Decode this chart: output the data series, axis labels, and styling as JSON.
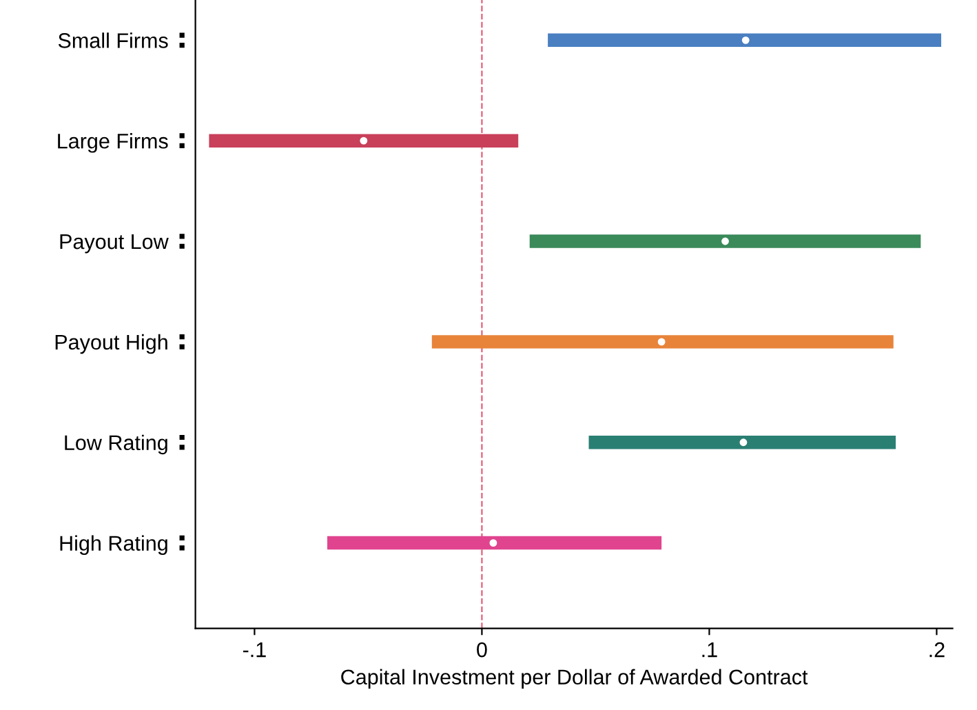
{
  "chart_data": {
    "type": "scatter",
    "orientation": "horizontal",
    "xlabel": "Capital Investment per Dollar of Awarded Contract",
    "categories": [
      "Small Firms",
      "Large Firms",
      "Payout Low",
      "Payout High",
      "Low Rating",
      "High Rating"
    ],
    "values": [
      0.116,
      -0.052,
      0.107,
      0.079,
      0.115,
      0.005
    ],
    "errors": [
      [
        0.029,
        0.202
      ],
      [
        -0.12,
        0.016
      ],
      [
        0.021,
        0.193
      ],
      [
        -0.022,
        0.181
      ],
      [
        0.047,
        0.182
      ],
      [
        -0.068,
        0.079
      ]
    ],
    "colors": [
      "#4a7fc1",
      "#c9405a",
      "#3a8a5a",
      "#e8843a",
      "#2a7f73",
      "#e0448f"
    ],
    "marker": "circle",
    "xlim": [
      -0.126,
      0.207
    ],
    "xticks": [
      {
        "value": -0.1,
        "label": "-.1"
      },
      {
        "value": 0,
        "label": "0"
      },
      {
        "value": 0.1,
        "label": ".1"
      },
      {
        "value": 0.2,
        "label": ".2"
      }
    ],
    "ref_lines": [
      {
        "axis": "x",
        "value": 0,
        "color": "#e0607a",
        "line_style": "dashed"
      }
    ],
    "grid": false,
    "legend": false
  }
}
